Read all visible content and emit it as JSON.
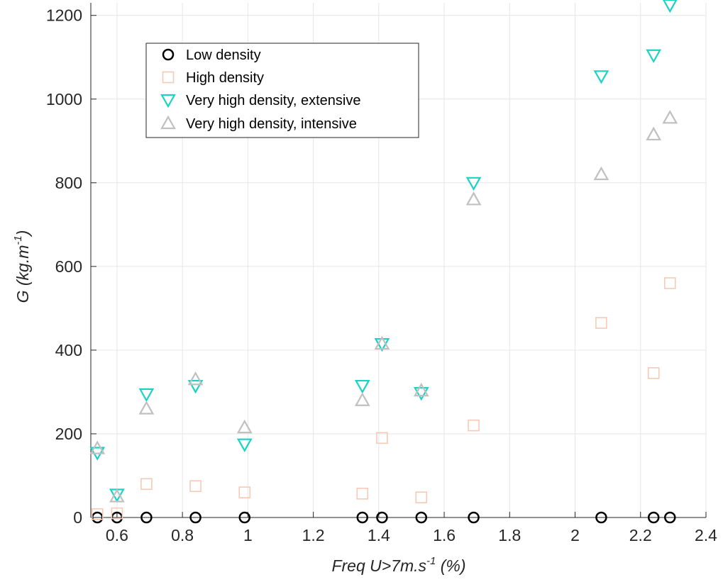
{
  "chart_data": {
    "type": "scatter",
    "xlabel": {
      "main": "Freq U>7m.s",
      "sup": "-1",
      "tail": " (%)"
    },
    "ylabel": {
      "main": "G (kg.m",
      "sup": "-1",
      "tail": ")"
    },
    "xlim": [
      0.52,
      2.4
    ],
    "ylim": [
      0,
      1230
    ],
    "xticks": [
      0.6,
      0.8,
      1,
      1.2,
      1.4,
      1.6,
      1.8,
      2,
      2.2,
      2.4
    ],
    "xtick_labels": [
      "0.6",
      "0.8",
      "1",
      "1.2",
      "1.4",
      "1.6",
      "1.8",
      "2",
      "2.2",
      "2.4"
    ],
    "yticks": [
      0,
      200,
      400,
      600,
      800,
      1000,
      1200
    ],
    "ytick_labels": [
      "0",
      "200",
      "400",
      "600",
      "800",
      "1000",
      "1200"
    ],
    "grid": true,
    "legend_position": "top-left",
    "series": [
      {
        "name": "Low density",
        "marker": "circle",
        "color": "#000000",
        "x": [
          0.54,
          0.6,
          0.69,
          0.84,
          0.99,
          1.35,
          1.41,
          1.53,
          1.69,
          2.08,
          2.24,
          2.29
        ],
        "y": [
          0,
          0,
          0,
          0,
          0,
          0,
          0,
          0,
          0,
          0,
          0,
          0
        ]
      },
      {
        "name": "High density",
        "marker": "square",
        "color": "#f8c9b5",
        "x": [
          0.54,
          0.6,
          0.69,
          0.84,
          0.99,
          1.35,
          1.41,
          1.53,
          1.69,
          2.08,
          2.24,
          2.29
        ],
        "y": [
          8,
          10,
          80,
          75,
          60,
          57,
          190,
          48,
          220,
          465,
          345,
          560
        ]
      },
      {
        "name": "Very high density, extensive",
        "marker": "triangle-down",
        "color": "#1ad3c5",
        "x": [
          0.54,
          0.6,
          0.69,
          0.84,
          0.99,
          1.35,
          1.41,
          1.53,
          1.69,
          2.08,
          2.24,
          2.29
        ],
        "y": [
          155,
          55,
          295,
          315,
          175,
          315,
          415,
          298,
          800,
          1055,
          1105,
          1225
        ]
      },
      {
        "name": "Very high density, intensive",
        "marker": "triangle-up",
        "color": "#c0c0c0",
        "x": [
          0.54,
          0.6,
          0.69,
          0.84,
          0.99,
          1.35,
          1.41,
          1.53,
          1.69,
          2.08,
          2.24,
          2.29
        ],
        "y": [
          165,
          50,
          260,
          330,
          215,
          280,
          415,
          303,
          760,
          820,
          915,
          955
        ]
      }
    ]
  }
}
